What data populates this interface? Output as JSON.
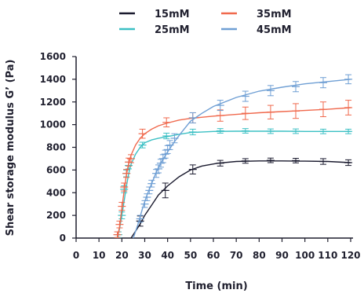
{
  "chart_data": {
    "type": "line",
    "title": "",
    "xlabel": "Time (min)",
    "ylabel": "Shear storage modulus G’ (Pa)",
    "xlim": [
      0,
      120
    ],
    "ylim": [
      0,
      1600
    ],
    "x_ticks": [
      0,
      10,
      20,
      30,
      40,
      50,
      60,
      70,
      80,
      90,
      100,
      110,
      120
    ],
    "y_ticks": [
      0,
      200,
      400,
      600,
      800,
      1000,
      1200,
      1400,
      1600
    ],
    "x_tick_labels": [
      "0",
      "10",
      "20",
      "30",
      "40",
      "50",
      "60",
      "70",
      "80",
      "90",
      "100",
      "110",
      "120"
    ],
    "y_tick_labels": [
      "0",
      "200",
      "400",
      "600",
      "800",
      "1000",
      "1200",
      "1400",
      "1600"
    ],
    "grid": false,
    "legend_position": "top",
    "series": [
      {
        "name": "15mM",
        "color": "#1a1a2e",
        "curve_x": [
          24,
          26,
          28,
          30,
          33,
          36,
          40,
          45,
          50,
          55,
          62,
          70,
          80,
          90,
          100,
          110,
          120
        ],
        "curve_y": [
          0,
          60,
          125,
          200,
          290,
          380,
          460,
          540,
          600,
          635,
          660,
          675,
          680,
          680,
          678,
          675,
          665
        ],
        "markers": [
          {
            "x": 28,
            "y": 150,
            "err": 45
          },
          {
            "x": 39,
            "y": 420,
            "err": 65
          },
          {
            "x": 51,
            "y": 605,
            "err": 40
          },
          {
            "x": 63,
            "y": 660,
            "err": 25
          },
          {
            "x": 74,
            "y": 680,
            "err": 20
          },
          {
            "x": 85,
            "y": 685,
            "err": 20
          },
          {
            "x": 96,
            "y": 683,
            "err": 20
          },
          {
            "x": 108,
            "y": 675,
            "err": 25
          },
          {
            "x": 119,
            "y": 665,
            "err": 25
          }
        ]
      },
      {
        "name": "25mM",
        "color": "#3cc0c4",
        "curve_x": [
          18,
          19,
          20,
          21,
          22,
          23,
          24,
          26,
          28,
          30,
          33,
          36,
          40,
          45,
          50,
          60,
          70,
          80,
          90,
          100,
          110,
          120
        ],
        "curve_y": [
          0,
          80,
          200,
          330,
          460,
          570,
          650,
          740,
          800,
          840,
          865,
          880,
          895,
          915,
          930,
          940,
          942,
          942,
          942,
          940,
          940,
          940
        ],
        "markers": [
          {
            "x": 18.5,
            "y": 30,
            "err": 25
          },
          {
            "x": 20,
            "y": 200,
            "err": 30
          },
          {
            "x": 21,
            "y": 430,
            "err": 30
          },
          {
            "x": 22,
            "y": 570,
            "err": 30
          },
          {
            "x": 23,
            "y": 640,
            "err": 30
          },
          {
            "x": 29,
            "y": 820,
            "err": 25
          },
          {
            "x": 39.5,
            "y": 900,
            "err": 25
          },
          {
            "x": 51,
            "y": 935,
            "err": 25
          },
          {
            "x": 63,
            "y": 945,
            "err": 20
          },
          {
            "x": 74,
            "y": 945,
            "err": 20
          },
          {
            "x": 85,
            "y": 942,
            "err": 20
          },
          {
            "x": 96,
            "y": 942,
            "err": 20
          },
          {
            "x": 108,
            "y": 940,
            "err": 20
          },
          {
            "x": 119,
            "y": 940,
            "err": 20
          }
        ]
      },
      {
        "name": "35mM",
        "color": "#f0694d",
        "curve_x": [
          18,
          19,
          20,
          21,
          22,
          23,
          24,
          26,
          28,
          30,
          33,
          36,
          40,
          45,
          50,
          60,
          70,
          80,
          90,
          100,
          110,
          120
        ],
        "curve_y": [
          0,
          100,
          260,
          420,
          560,
          660,
          730,
          820,
          880,
          920,
          960,
          990,
          1015,
          1040,
          1055,
          1075,
          1090,
          1105,
          1115,
          1125,
          1135,
          1150
        ],
        "markers": [
          {
            "x": 18,
            "y": 30,
            "err": 25
          },
          {
            "x": 19,
            "y": 120,
            "err": 30
          },
          {
            "x": 20,
            "y": 280,
            "err": 35
          },
          {
            "x": 21,
            "y": 450,
            "err": 35
          },
          {
            "x": 22,
            "y": 570,
            "err": 35
          },
          {
            "x": 23,
            "y": 670,
            "err": 35
          },
          {
            "x": 24,
            "y": 700,
            "err": 35
          },
          {
            "x": 29,
            "y": 920,
            "err": 40
          },
          {
            "x": 39.5,
            "y": 1020,
            "err": 40
          },
          {
            "x": 51,
            "y": 1060,
            "err": 45
          },
          {
            "x": 63,
            "y": 1080,
            "err": 50
          },
          {
            "x": 74,
            "y": 1100,
            "err": 55
          },
          {
            "x": 85,
            "y": 1110,
            "err": 60
          },
          {
            "x": 96,
            "y": 1120,
            "err": 65
          },
          {
            "x": 108,
            "y": 1135,
            "err": 65
          },
          {
            "x": 119,
            "y": 1150,
            "err": 65
          }
        ]
      },
      {
        "name": "45mM",
        "color": "#6f9fd4",
        "curve_x": [
          25,
          27,
          29,
          31,
          33,
          35,
          37,
          40,
          43,
          46,
          50,
          55,
          60,
          70,
          80,
          90,
          100,
          110,
          120
        ],
        "curve_y": [
          0,
          120,
          260,
          380,
          480,
          580,
          660,
          760,
          850,
          930,
          1030,
          1100,
          1160,
          1240,
          1295,
          1330,
          1360,
          1380,
          1400
        ],
        "markers": [
          {
            "x": 28,
            "y": 170,
            "err": 30
          },
          {
            "x": 30,
            "y": 300,
            "err": 30
          },
          {
            "x": 31,
            "y": 360,
            "err": 30
          },
          {
            "x": 32,
            "y": 420,
            "err": 30
          },
          {
            "x": 33,
            "y": 480,
            "err": 30
          },
          {
            "x": 35,
            "y": 570,
            "err": 35
          },
          {
            "x": 36,
            "y": 610,
            "err": 35
          },
          {
            "x": 37,
            "y": 660,
            "err": 35
          },
          {
            "x": 38,
            "y": 700,
            "err": 35
          },
          {
            "x": 39,
            "y": 740,
            "err": 35
          },
          {
            "x": 40,
            "y": 780,
            "err": 35
          },
          {
            "x": 41,
            "y": 820,
            "err": 40
          },
          {
            "x": 43,
            "y": 880,
            "err": 40
          },
          {
            "x": 51,
            "y": 1060,
            "err": 45
          },
          {
            "x": 63,
            "y": 1170,
            "err": 45
          },
          {
            "x": 74,
            "y": 1250,
            "err": 45
          },
          {
            "x": 85,
            "y": 1300,
            "err": 45
          },
          {
            "x": 96,
            "y": 1335,
            "err": 45
          },
          {
            "x": 108,
            "y": 1370,
            "err": 45
          },
          {
            "x": 119,
            "y": 1400,
            "err": 40
          }
        ]
      }
    ]
  }
}
